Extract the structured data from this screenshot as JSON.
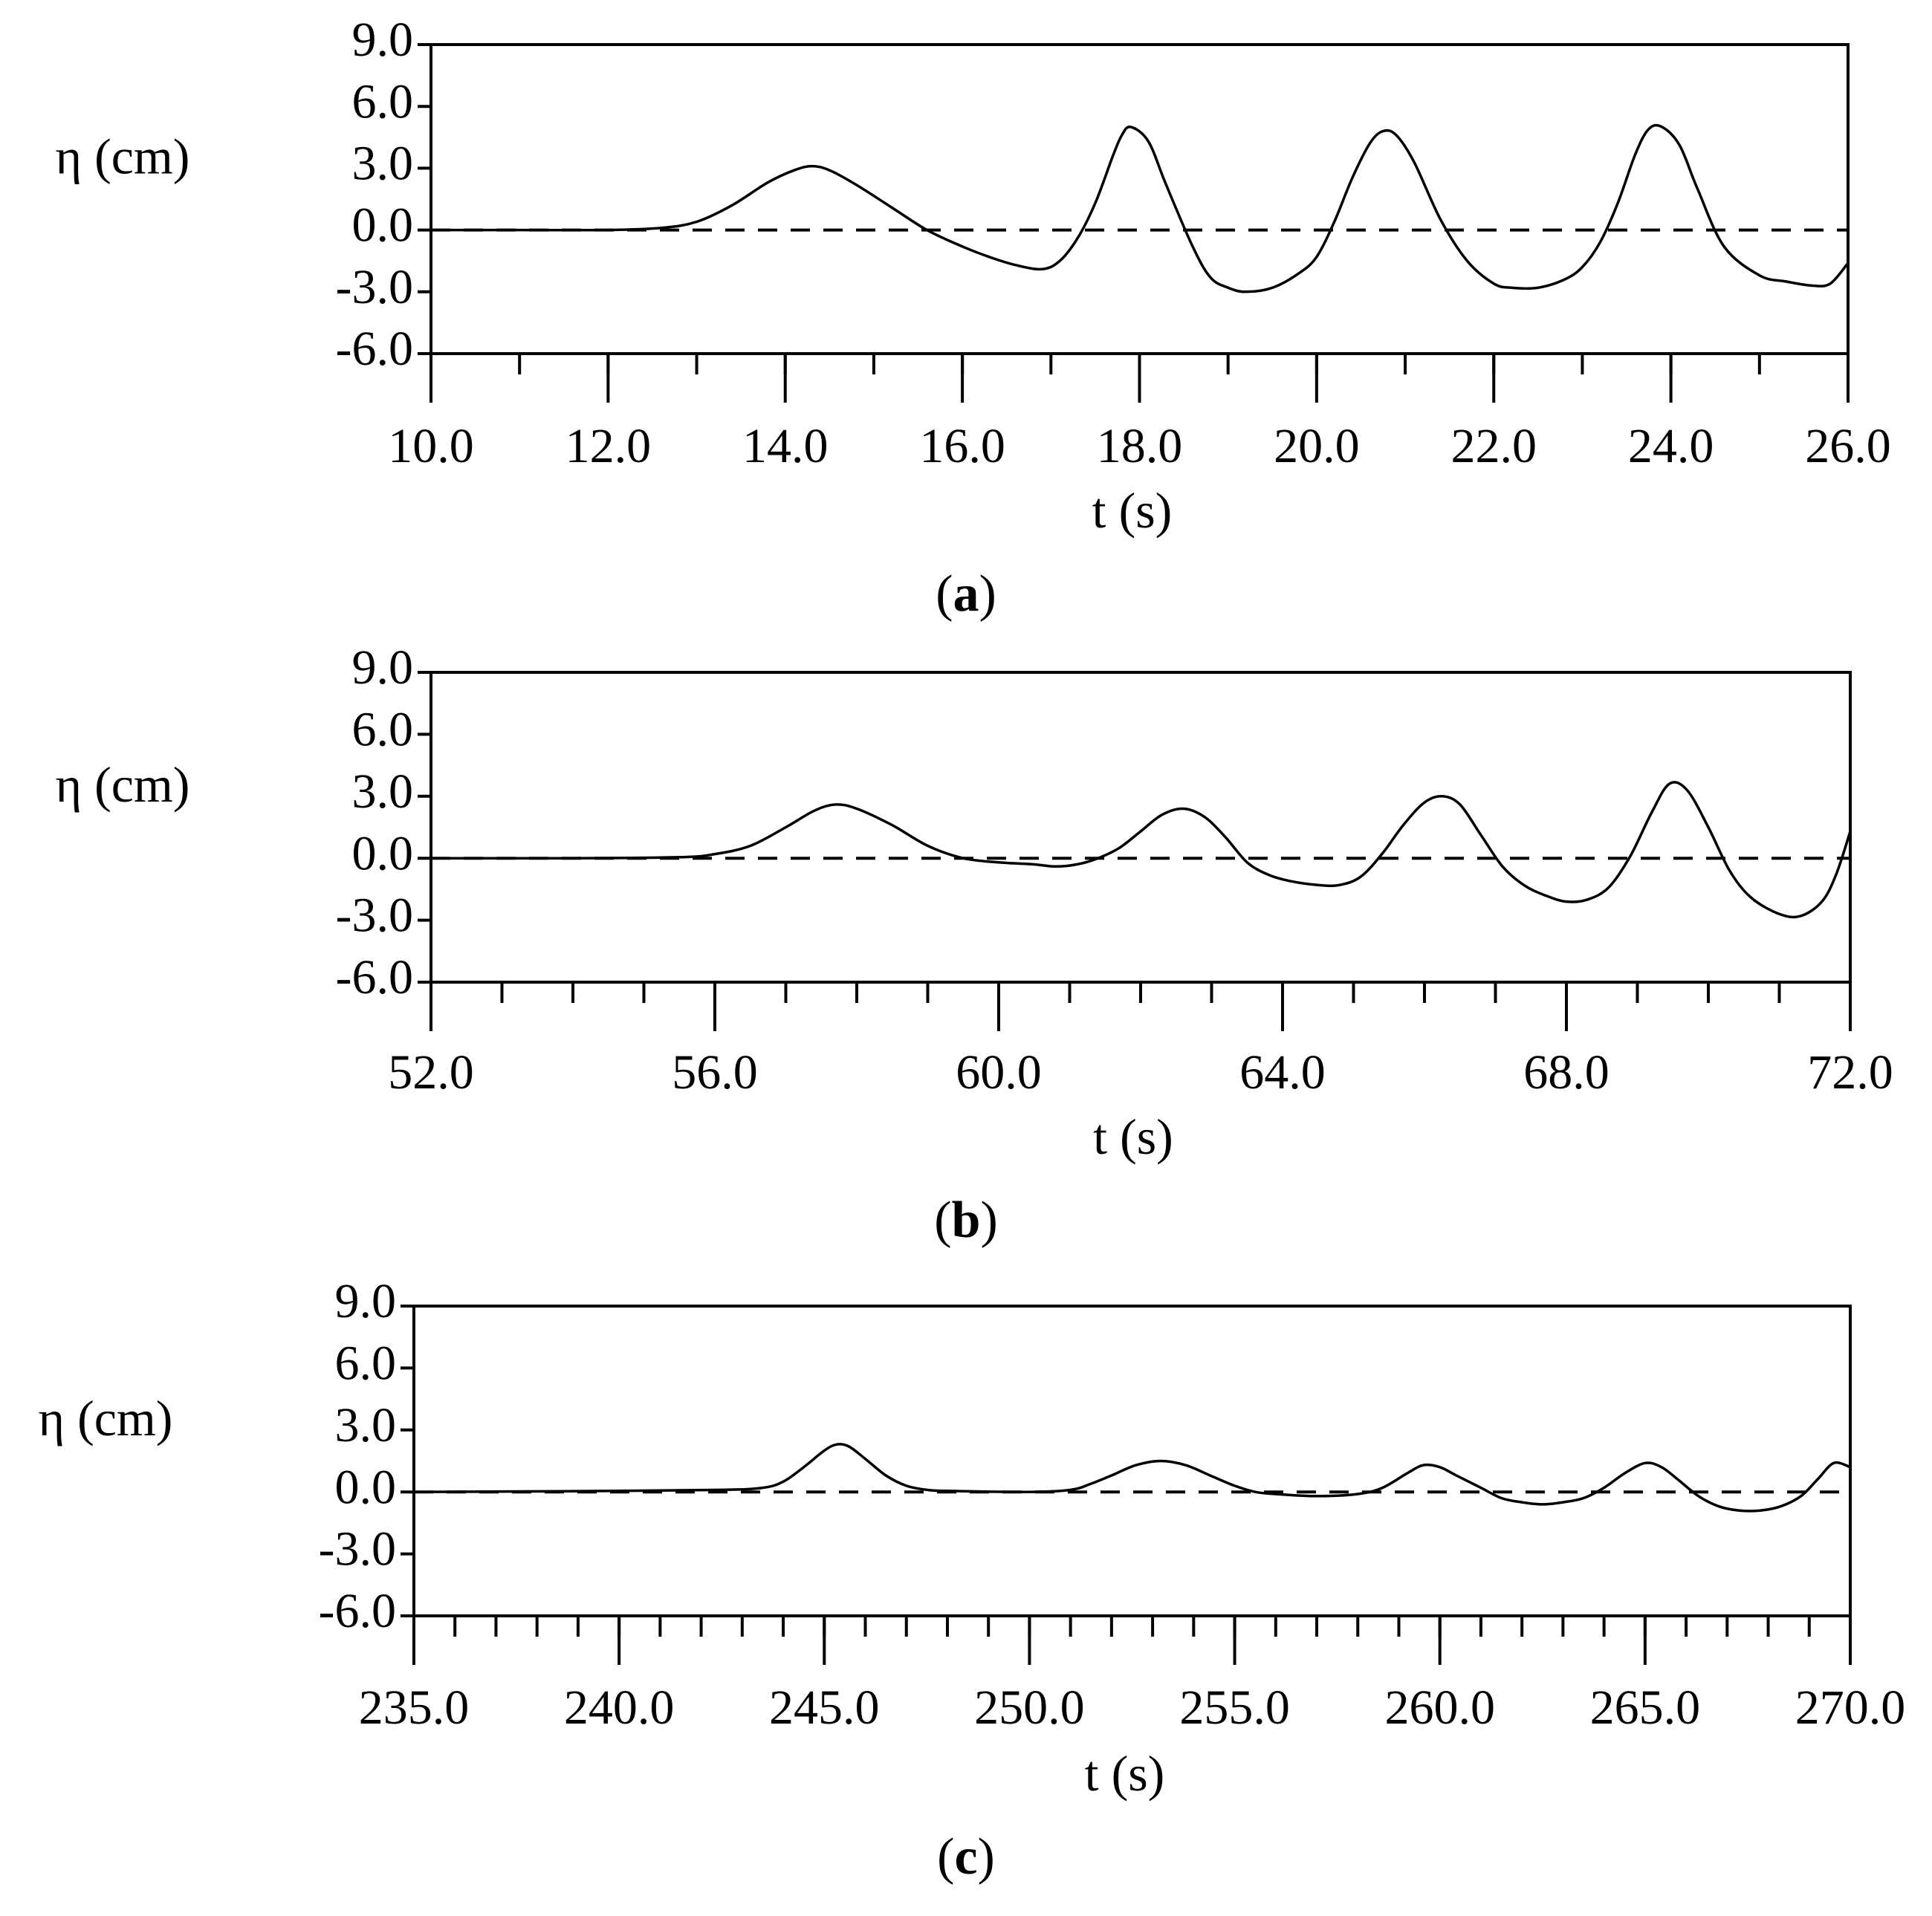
{
  "chart_data": [
    {
      "type": "line",
      "panel_label": "a",
      "xlabel": "t (s)",
      "ylabel": "η (cm)",
      "xlim": [
        10.0,
        26.0
      ],
      "ylim": [
        -6.0,
        9.0
      ],
      "x_ticks": [
        "10.0",
        "12.0",
        "14.0",
        "16.0",
        "18.0",
        "20.0",
        "22.0",
        "24.0",
        "26.0"
      ],
      "x_tick_values": [
        10,
        12,
        14,
        16,
        18,
        20,
        22,
        24,
        26
      ],
      "x_minor_step": 1.0,
      "y_ticks": [
        "9.0",
        "6.0",
        "3.0",
        "0.0",
        "-3.0",
        "-6.0"
      ],
      "y_tick_values": [
        9,
        6,
        3,
        0,
        -3,
        -6
      ],
      "reference_line": 0.0,
      "grid": false,
      "series": [
        {
          "x": [
            10.0,
            11.0,
            12.0,
            12.6,
            13.0,
            13.4,
            13.8,
            14.1,
            14.3,
            14.5,
            14.8,
            15.2,
            15.6,
            16.0,
            16.3,
            16.6,
            16.9,
            17.1,
            17.3,
            17.5,
            17.7,
            17.8,
            17.9,
            18.1,
            18.3,
            18.6,
            18.8,
            19.0,
            19.2,
            19.5,
            19.8,
            20.0,
            20.2,
            20.4,
            20.6,
            20.75,
            20.9,
            21.1,
            21.4,
            21.7,
            22.0,
            22.2,
            22.5,
            22.8,
            23.0,
            23.2,
            23.4,
            23.6,
            23.75,
            23.9,
            24.1,
            24.3,
            24.6,
            25.0,
            25.3,
            25.6,
            25.8,
            26.0
          ],
          "y": [
            0.0,
            0.0,
            0.0,
            0.1,
            0.4,
            1.2,
            2.3,
            2.9,
            3.1,
            2.9,
            2.2,
            1.1,
            0.0,
            -0.8,
            -1.3,
            -1.7,
            -1.9,
            -1.5,
            -0.4,
            1.3,
            3.6,
            4.6,
            5.0,
            4.3,
            2.2,
            -0.8,
            -2.3,
            -2.8,
            -3.0,
            -2.8,
            -2.1,
            -1.3,
            0.4,
            2.5,
            4.2,
            4.8,
            4.6,
            3.3,
            0.5,
            -1.5,
            -2.6,
            -2.8,
            -2.8,
            -2.4,
            -1.8,
            -0.6,
            1.3,
            3.7,
            4.9,
            5.0,
            4.1,
            2.0,
            -0.8,
            -2.2,
            -2.5,
            -2.7,
            -2.6,
            -1.6
          ]
        }
      ]
    },
    {
      "type": "line",
      "panel_label": "b",
      "xlabel": "t (s)",
      "ylabel": "η (cm)",
      "xlim": [
        52.0,
        72.0
      ],
      "ylim": [
        -6.0,
        9.0
      ],
      "x_ticks": [
        "52.0",
        "56.0",
        "60.0",
        "64.0",
        "68.0",
        "72.0"
      ],
      "x_tick_values": [
        52,
        56,
        60,
        64,
        68,
        72
      ],
      "x_minor_step": 1.0,
      "y_ticks": [
        "9.0",
        "6.0",
        "3.0",
        "0.0",
        "-3.0",
        "-6.0"
      ],
      "y_tick_values": [
        9,
        6,
        3,
        0,
        -3,
        -6
      ],
      "reference_line": 0.0,
      "grid": false,
      "series": [
        {
          "x": [
            52.0,
            54.0,
            55.5,
            56.0,
            56.5,
            57.0,
            57.4,
            57.7,
            58.0,
            58.5,
            59.0,
            59.5,
            60.0,
            60.5,
            60.8,
            61.1,
            61.4,
            61.7,
            62.0,
            62.3,
            62.6,
            62.9,
            63.2,
            63.5,
            63.8,
            64.1,
            64.5,
            64.8,
            65.1,
            65.4,
            65.7,
            66.0,
            66.25,
            66.5,
            66.8,
            67.1,
            67.4,
            67.7,
            68.0,
            68.3,
            68.6,
            68.9,
            69.2,
            69.45,
            69.7,
            70.0,
            70.3,
            70.6,
            71.0,
            71.3,
            71.6,
            71.8,
            72.0
          ],
          "y": [
            0.0,
            0.0,
            0.05,
            0.2,
            0.6,
            1.5,
            2.3,
            2.6,
            2.4,
            1.6,
            0.6,
            0.0,
            -0.2,
            -0.3,
            -0.4,
            -0.3,
            0.0,
            0.5,
            1.3,
            2.1,
            2.4,
            2.0,
            1.0,
            -0.2,
            -0.8,
            -1.1,
            -1.3,
            -1.3,
            -0.9,
            0.2,
            1.6,
            2.7,
            3.0,
            2.6,
            1.1,
            -0.4,
            -1.3,
            -1.8,
            -2.1,
            -2.0,
            -1.4,
            0.1,
            2.2,
            3.6,
            3.3,
            1.5,
            -0.6,
            -1.9,
            -2.7,
            -2.8,
            -2.1,
            -0.8,
            1.3
          ]
        }
      ]
    },
    {
      "type": "line",
      "panel_label": "c",
      "xlabel": "t (s)",
      "ylabel": "η (cm)",
      "xlim": [
        235.0,
        270.0
      ],
      "ylim": [
        -6.0,
        9.0
      ],
      "x_ticks": [
        "235.0",
        "240.0",
        "245.0",
        "250.0",
        "255.0",
        "260.0",
        "265.0",
        "270.0"
      ],
      "x_tick_values": [
        235,
        240,
        245,
        250,
        255,
        260,
        265,
        270
      ],
      "x_minor_step": 1.0,
      "y_ticks": [
        "9.0",
        "6.0",
        "3.0",
        "0.0",
        "-3.0",
        "-6.0"
      ],
      "y_tick_values": [
        9,
        6,
        3,
        0,
        -3,
        -6
      ],
      "reference_line": 0.0,
      "grid": false,
      "series": [
        {
          "x": [
            235.0,
            240.0,
            242.5,
            243.5,
            244.0,
            244.5,
            245.0,
            245.3,
            245.6,
            246.0,
            246.5,
            247.0,
            247.5,
            248.0,
            250.0,
            251.0,
            251.5,
            252.0,
            252.6,
            253.2,
            253.8,
            254.4,
            255.0,
            255.5,
            256.0,
            257.0,
            258.0,
            258.6,
            259.2,
            259.6,
            260.0,
            260.4,
            261.0,
            261.5,
            262.0,
            262.5,
            263.0,
            263.5,
            264.0,
            264.5,
            265.0,
            265.4,
            265.8,
            266.3,
            266.8,
            267.3,
            267.8,
            268.3,
            268.8,
            269.2,
            269.6,
            270.0
          ],
          "y": [
            0.0,
            0.05,
            0.1,
            0.2,
            0.5,
            1.2,
            2.0,
            2.3,
            2.2,
            1.6,
            0.8,
            0.3,
            0.1,
            0.05,
            0.0,
            0.1,
            0.4,
            0.8,
            1.3,
            1.5,
            1.3,
            0.8,
            0.3,
            0.0,
            -0.1,
            -0.2,
            -0.1,
            0.2,
            0.9,
            1.3,
            1.2,
            0.8,
            0.2,
            -0.3,
            -0.5,
            -0.6,
            -0.5,
            -0.3,
            0.2,
            0.9,
            1.4,
            1.2,
            0.6,
            -0.2,
            -0.7,
            -0.9,
            -0.9,
            -0.7,
            -0.2,
            0.6,
            1.4,
            1.2
          ]
        }
      ]
    }
  ]
}
